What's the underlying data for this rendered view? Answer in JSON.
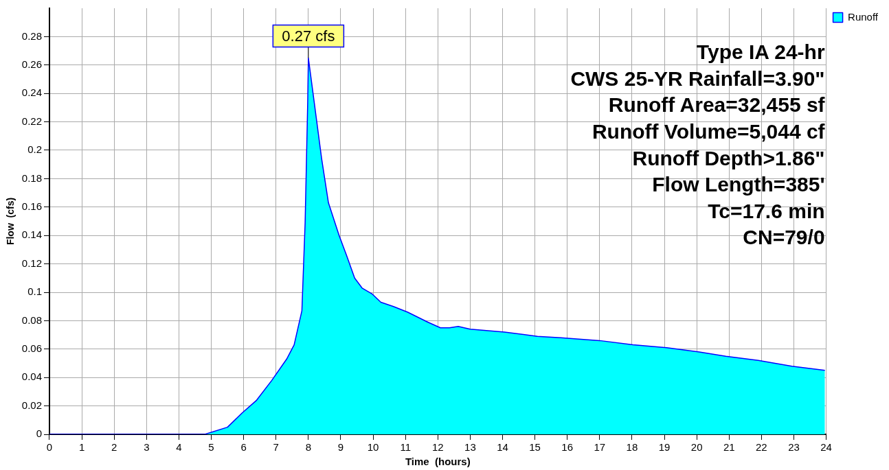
{
  "chart_data": {
    "type": "area",
    "xlabel": "Time  (hours)",
    "ylabel": "Flow  (cfs)",
    "xlim": [
      0,
      24
    ],
    "xticks": [
      0,
      1,
      2,
      3,
      4,
      5,
      6,
      7,
      8,
      9,
      10,
      11,
      12,
      13,
      14,
      15,
      16,
      17,
      18,
      19,
      20,
      21,
      22,
      23,
      24
    ],
    "ylim": [
      0,
      0.3
    ],
    "yticks": [
      0,
      0.02,
      0.04,
      0.06,
      0.08,
      0.1,
      0.12,
      0.14,
      0.16,
      0.18,
      0.2,
      0.22,
      0.24,
      0.26,
      0.28
    ],
    "grid": true,
    "legend": "top right",
    "line_style": "solid",
    "series": [
      {
        "name": "Runoff",
        "color": "#00ffff",
        "x": [
          0,
          4.8,
          5.5,
          5.95,
          6.4,
          6.87,
          7.33,
          7.56,
          7.8,
          7.9,
          7.98,
          8.0,
          8.41,
          8.62,
          8.95,
          9.18,
          9.43,
          9.66,
          9.96,
          10.24,
          10.63,
          11.07,
          11.69,
          12.08,
          12.36,
          12.63,
          13.0,
          14.06,
          15.08,
          15.8,
          17.0,
          18.03,
          19.07,
          20.08,
          20.9,
          21.9,
          22.94,
          23.96
        ],
        "values": [
          0,
          0,
          0.005,
          0.015,
          0.024,
          0.038,
          0.053,
          0.063,
          0.087,
          0.149,
          0.234,
          0.265,
          0.194,
          0.163,
          0.14,
          0.126,
          0.11,
          0.103,
          0.099,
          0.093,
          0.09,
          0.086,
          0.079,
          0.075,
          0.075,
          0.076,
          0.074,
          0.072,
          0.069,
          0.068,
          0.066,
          0.063,
          0.061,
          0.058,
          0.055,
          0.052,
          0.048,
          0.045
        ]
      }
    ],
    "annotations": [
      {
        "text": "0.27 cfs",
        "x": 8,
        "y": 0.265
      },
      "Type IA 24-hr",
      "CWS 25-YR Rainfall=3.90\"",
      "Runoff Area=32,455 sf",
      "Runoff Volume=5,044 cf",
      "Runoff Depth>1.86\"",
      "Flow Length=385'",
      "Tc=17.6 min",
      "CN=79/0"
    ]
  }
}
